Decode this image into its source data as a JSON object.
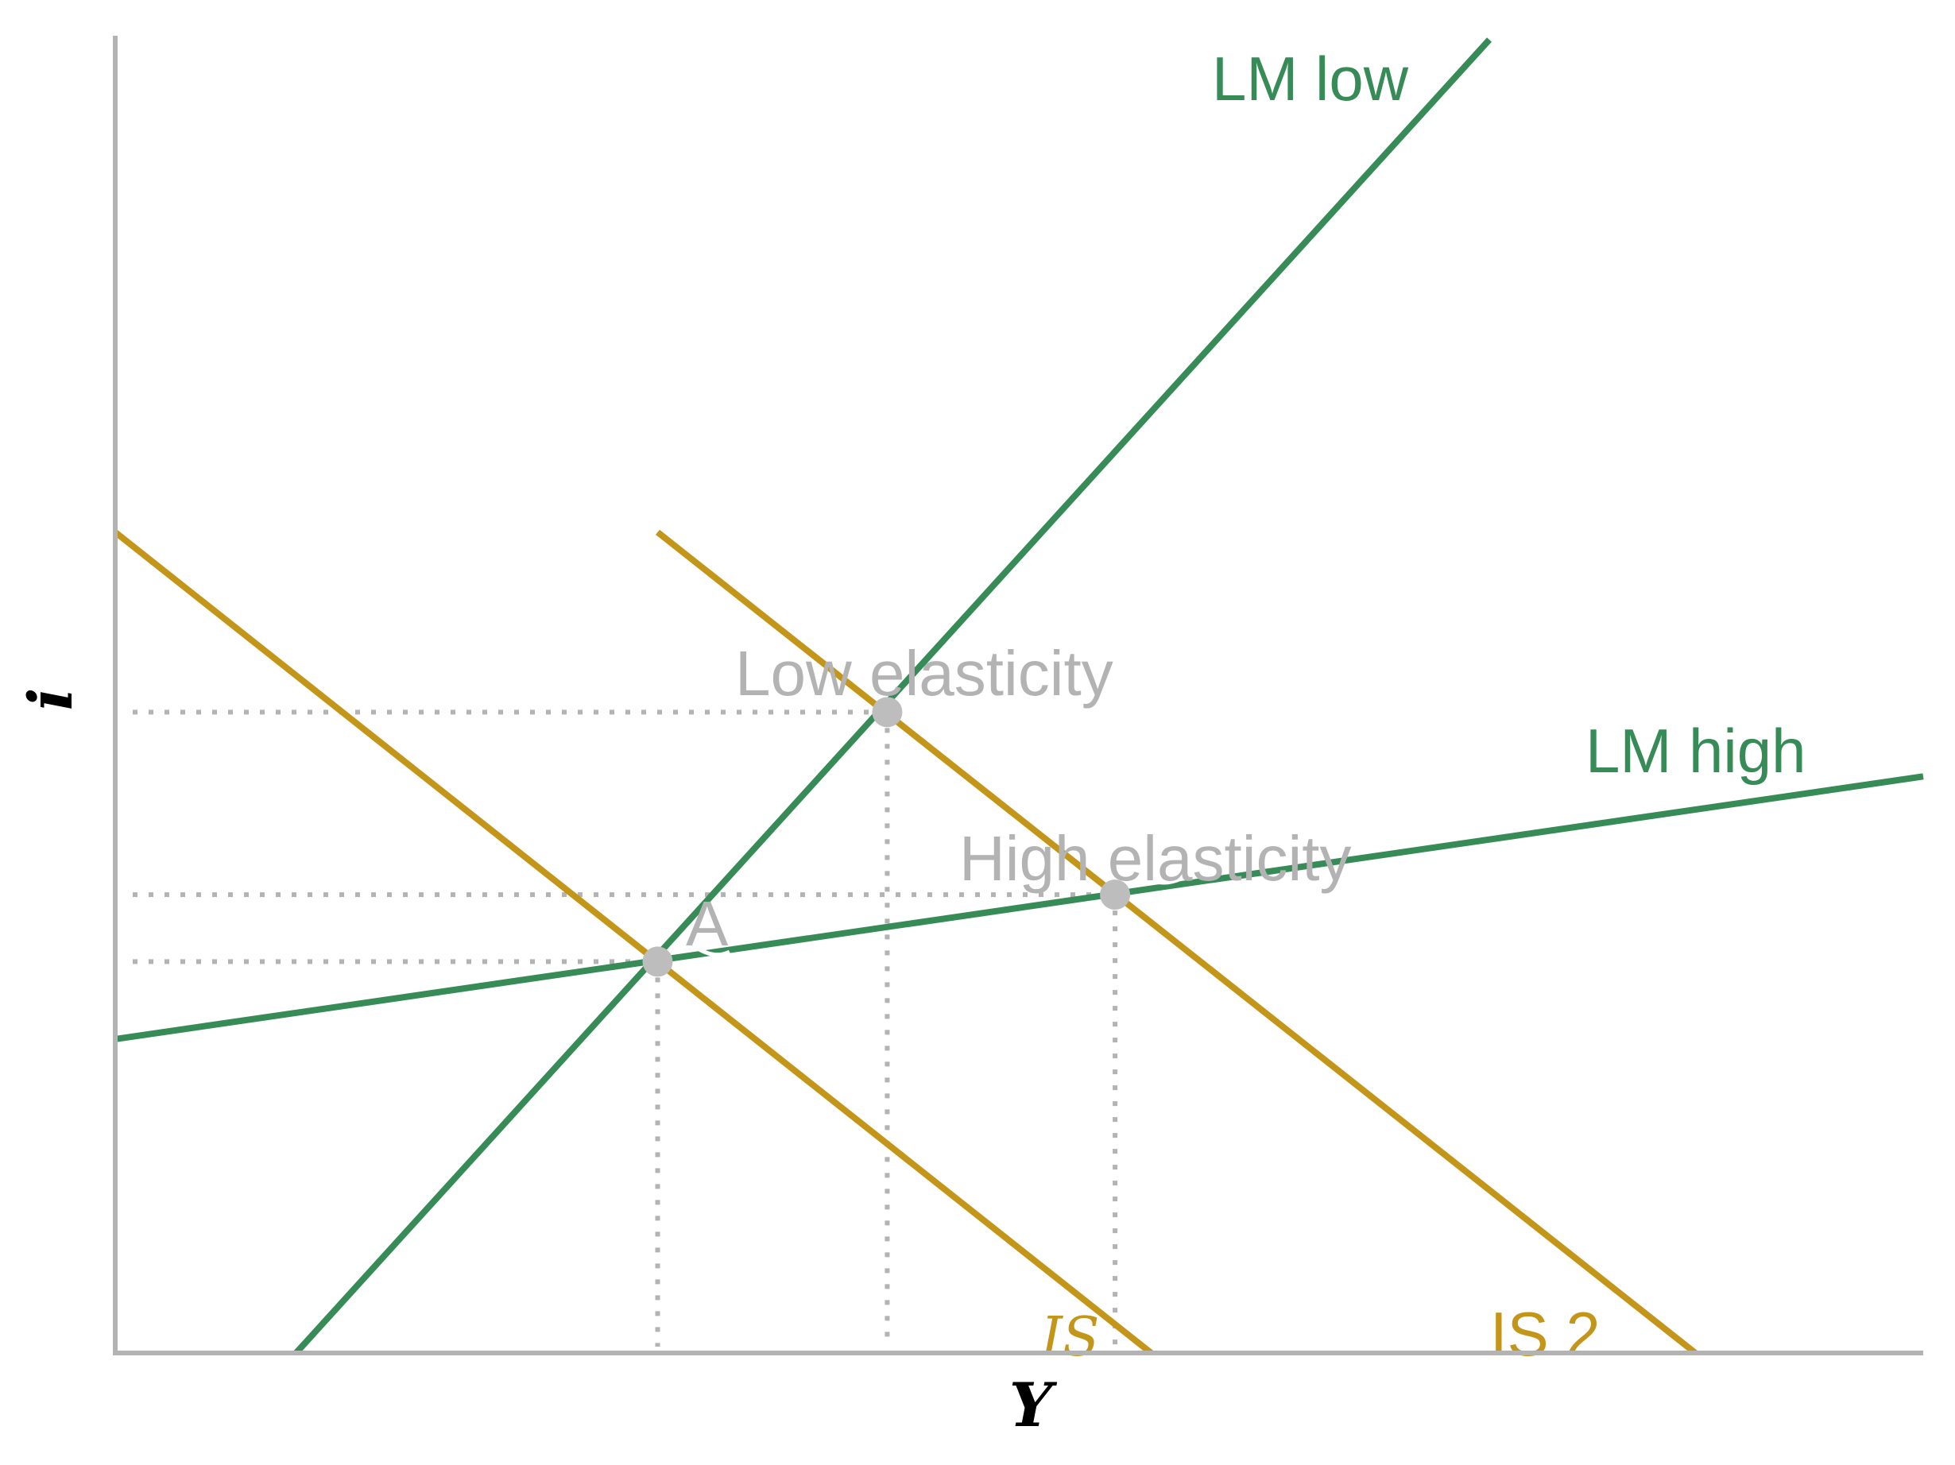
{
  "chart_data": {
    "type": "line",
    "title": "",
    "xlabel": "Y",
    "ylabel": "i",
    "xlim": [
      0,
      10
    ],
    "ylim": [
      0,
      10
    ],
    "grid": false,
    "series": [
      {
        "name": "LM low",
        "color": "#378b57",
        "x": [
          1,
          7.6
        ],
        "y": [
          0,
          10
        ]
      },
      {
        "name": "LM high",
        "color": "#378b57",
        "x": [
          0,
          10
        ],
        "y": [
          2.39,
          4.39
        ]
      },
      {
        "name": "IS",
        "color": "#c39519",
        "x": [
          0,
          5.73
        ],
        "y": [
          6.25,
          0
        ]
      },
      {
        "name": "IS 2",
        "color": "#c39519",
        "x": [
          3,
          8.74
        ],
        "y": [
          6.25,
          0
        ]
      }
    ],
    "points": [
      {
        "label": "A",
        "x": 3,
        "y": 2.98
      },
      {
        "label": "Low elasticity",
        "x": 4.27,
        "y": 4.88
      },
      {
        "label": "High elasticity",
        "x": 5.53,
        "y": 3.49
      }
    ],
    "annotations": [
      "LM low",
      "LM high",
      "IS",
      "IS 2",
      "A",
      "Low elasticity",
      "High elasticity"
    ]
  }
}
